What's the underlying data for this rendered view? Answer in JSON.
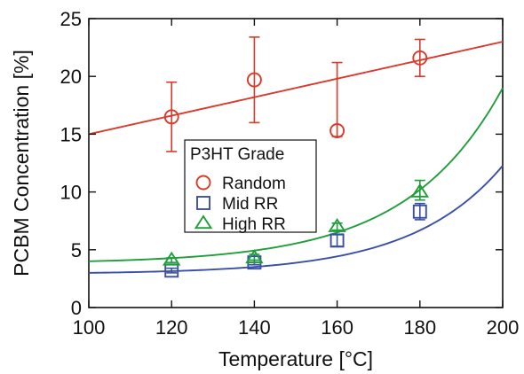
{
  "chart_data": {
    "type": "scatter",
    "xlabel": "Temperature [°C]",
    "ylabel": "PCBM Concentration [%]",
    "xlim": [
      100,
      200
    ],
    "ylim": [
      0,
      25
    ],
    "xticks": [
      100,
      120,
      140,
      160,
      180,
      200
    ],
    "yticks": [
      0,
      5,
      10,
      15,
      20,
      25
    ],
    "grid": false,
    "legend": {
      "title": "P3HT Grade",
      "position": "center-left"
    },
    "series": [
      {
        "name": "Random",
        "marker": "circle",
        "color": "#d93a2b",
        "points": [
          {
            "x": 120,
            "y": 16.5,
            "err_low": 13.5,
            "err_high": 19.5
          },
          {
            "x": 140,
            "y": 19.7,
            "err_low": 16.0,
            "err_high": 23.4
          },
          {
            "x": 160,
            "y": 15.3,
            "err_low": 14.8,
            "err_high": 21.2
          },
          {
            "x": 180,
            "y": 21.6,
            "err_low": 20.0,
            "err_high": 23.2
          }
        ],
        "fit": {
          "form": "linear",
          "a": 15.0,
          "b": 0.08,
          "x0": 100
        }
      },
      {
        "name": "Mid RR",
        "marker": "square",
        "color": "#3a4fa8",
        "points": [
          {
            "x": 120,
            "y": 3.2,
            "err_low": 3.0,
            "err_high": 3.4
          },
          {
            "x": 140,
            "y": 3.9,
            "err_low": 3.7,
            "err_high": 4.1
          },
          {
            "x": 160,
            "y": 5.8,
            "err_low": 5.3,
            "err_high": 6.3
          },
          {
            "x": 180,
            "y": 8.3,
            "err_low": 7.6,
            "err_high": 9.0
          }
        ],
        "fit": {
          "form": "exponential",
          "a": 2.9,
          "b": 0.1,
          "c": 0.0454,
          "x0": 100
        }
      },
      {
        "name": "High RR",
        "marker": "triangle",
        "color": "#1f9e3a",
        "points": [
          {
            "x": 120,
            "y": 4.1,
            "err_low": 3.9,
            "err_high": 4.3
          },
          {
            "x": 140,
            "y": 4.3,
            "err_low": 4.1,
            "err_high": 4.6
          },
          {
            "x": 160,
            "y": 7.0,
            "err_low": 6.7,
            "err_high": 7.3
          },
          {
            "x": 180,
            "y": 10.0,
            "err_low": 9.3,
            "err_high": 11.0
          }
        ],
        "fit": {
          "form": "exponential",
          "a": 3.8,
          "b": 0.2,
          "c": 0.0433,
          "x0": 100
        }
      }
    ]
  }
}
